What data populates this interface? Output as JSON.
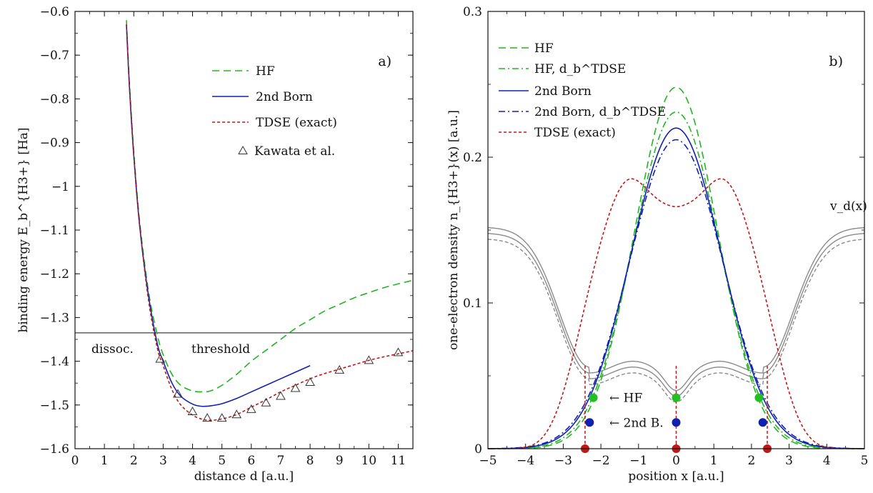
{
  "chart_data": [
    {
      "panel_label": "a)",
      "type": "line",
      "xlabel": "distance d [a.u.]",
      "ylabel": "binding energy E_b^{H3+} [Ha]",
      "xlim": [
        0,
        11.5
      ],
      "ylim": [
        -1.6,
        -0.6
      ],
      "xticks": [
        0,
        1,
        2,
        3,
        4,
        5,
        6,
        7,
        8,
        9,
        10,
        11
      ],
      "yticks": [
        -1.6,
        -1.5,
        -1.4,
        -1.3,
        -1.2,
        -1.1,
        -1,
        -0.9,
        -0.8,
        -0.7,
        -0.6
      ],
      "xtick_labels": [
        "0",
        "1",
        "2",
        "3",
        "4",
        "5",
        "6",
        "7",
        "8",
        "9",
        "10",
        "11"
      ],
      "ytick_labels": [
        "−1.6",
        "−1.5",
        "−1.4",
        "−1.3",
        "−1.2",
        "−1.1",
        "−1",
        "−0.9",
        "−0.8",
        "−0.7",
        "−0.6"
      ],
      "legend_position": "top-right",
      "series": [
        {
          "name": "HF",
          "style": "dashed",
          "color": "#22b522",
          "x": [
            1.75,
            1.85,
            2.0,
            2.2,
            2.5,
            2.8,
            3.0,
            3.3,
            3.6,
            4.0,
            4.3,
            4.6,
            5.0,
            5.5,
            6.0,
            6.5,
            7.0,
            7.5,
            8.0,
            8.5,
            9.0,
            9.5,
            10.0,
            10.5,
            11.0,
            11.5
          ],
          "y": [
            -0.62,
            -0.76,
            -0.92,
            -1.08,
            -1.24,
            -1.34,
            -1.385,
            -1.43,
            -1.455,
            -1.468,
            -1.47,
            -1.468,
            -1.455,
            -1.43,
            -1.4,
            -1.375,
            -1.35,
            -1.325,
            -1.305,
            -1.285,
            -1.27,
            -1.255,
            -1.243,
            -1.232,
            -1.223,
            -1.215
          ]
        },
        {
          "name": "2nd Born",
          "style": "solid",
          "color": "#1020b0",
          "x": [
            1.75,
            1.85,
            2.0,
            2.2,
            2.5,
            2.8,
            3.0,
            3.3,
            3.6,
            4.0,
            4.3,
            4.6,
            5.0,
            5.5,
            6.0,
            6.5,
            7.0,
            7.5,
            8.0
          ],
          "y": [
            -0.63,
            -0.77,
            -0.93,
            -1.09,
            -1.25,
            -1.36,
            -1.4,
            -1.45,
            -1.48,
            -1.498,
            -1.503,
            -1.502,
            -1.497,
            -1.485,
            -1.47,
            -1.455,
            -1.44,
            -1.425,
            -1.41
          ]
        },
        {
          "name": "TDSE (exact)",
          "style": "dotted",
          "color": "#c01818",
          "x": [
            1.75,
            1.85,
            2.0,
            2.2,
            2.5,
            2.8,
            3.0,
            3.3,
            3.6,
            4.0,
            4.3,
            4.6,
            5.0,
            5.5,
            6.0,
            6.5,
            7.0,
            7.5,
            8.0,
            8.5,
            9.0,
            9.5,
            10.0,
            10.5,
            11.0,
            11.5
          ],
          "y": [
            -0.63,
            -0.77,
            -0.93,
            -1.09,
            -1.26,
            -1.37,
            -1.41,
            -1.465,
            -1.5,
            -1.523,
            -1.532,
            -1.535,
            -1.532,
            -1.522,
            -1.505,
            -1.488,
            -1.47,
            -1.455,
            -1.44,
            -1.428,
            -1.418,
            -1.408,
            -1.398,
            -1.39,
            -1.383,
            -1.376
          ]
        },
        {
          "name": "Kawata et al.",
          "style": "triangles",
          "color": "#111111",
          "x": [
            2.9,
            3.5,
            4.0,
            4.5,
            5.0,
            5.5,
            6.0,
            6.5,
            7.0,
            7.5,
            8.0,
            9.0,
            10.0,
            11.0
          ],
          "y": [
            -1.395,
            -1.475,
            -1.515,
            -1.53,
            -1.53,
            -1.522,
            -1.51,
            -1.495,
            -1.48,
            -1.462,
            -1.448,
            -1.42,
            -1.398,
            -1.38
          ]
        }
      ],
      "hline": {
        "y": -1.335,
        "labels": [
          "dissoc.",
          "threshold"
        ]
      }
    },
    {
      "panel_label": "b)",
      "type": "line",
      "xlabel": "position x [a.u.]",
      "ylabel": "one-electron density n_{H3+}(x) [a.u.]",
      "xlim": [
        -5,
        5
      ],
      "ylim": [
        0,
        0.3
      ],
      "xticks": [
        -5,
        -4,
        -3,
        -2,
        -1,
        0,
        1,
        2,
        3,
        4,
        5
      ],
      "yticks": [
        0,
        0.1,
        0.2,
        0.3
      ],
      "xtick_labels": [
        "−5",
        "−4",
        "−3",
        "−2",
        "−1",
        "0",
        "1",
        "2",
        "3",
        "4",
        "5"
      ],
      "ytick_labels": [
        "0",
        "0.1",
        "0.2",
        "0.3"
      ],
      "legend_position": "top-left",
      "series": [
        {
          "name": "HF",
          "style": "dashed",
          "color": "#22b522",
          "model": "gauss",
          "peak": 0.248,
          "width": 1.55
        },
        {
          "name": "HF, d_b^TDSE",
          "style": "dashdot",
          "color": "#22b522",
          "model": "gauss",
          "peak": 0.231,
          "width": 1.62
        },
        {
          "name": "2nd Born",
          "style": "solid",
          "color": "#1020b0",
          "model": "gauss",
          "peak": 0.22,
          "width": 1.7
        },
        {
          "name": "2nd Born, d_b^TDSE",
          "style": "dashdot",
          "color": "#1020b0",
          "model": "gauss",
          "peak": 0.212,
          "width": 1.75
        },
        {
          "name": "TDSE (exact)",
          "style": "dotted",
          "color": "#c01818",
          "model": "tdse",
          "peak": 0.184
        }
      ],
      "potential": {
        "label": "v_d(x)",
        "color": "#888888",
        "min_x": [
          -2.3,
          2.3
        ],
        "center": 0.04,
        "edge": 0.148
      },
      "nuclei": {
        "HF": {
          "label": "← HF",
          "x": [
            -2.2,
            0,
            2.2
          ],
          "y": 0.035,
          "color": "#22c022"
        },
        "2nd Born": {
          "label": "← 2nd B.",
          "x": [
            -2.3,
            0,
            2.3
          ],
          "y": 0.018,
          "color": "#1020b0"
        },
        "TDSE": {
          "x": [
            -2.42,
            0,
            2.42
          ],
          "y": 0.0,
          "color": "#c01818"
        }
      }
    }
  ]
}
